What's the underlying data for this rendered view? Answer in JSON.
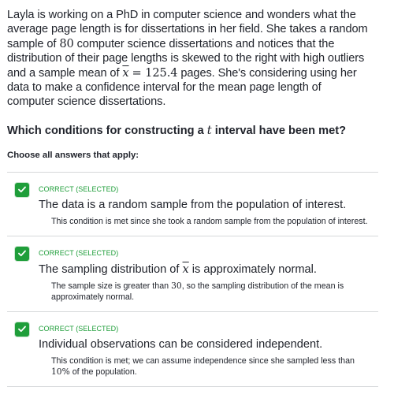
{
  "problem": {
    "part1": "Layla is working on a PhD in computer science and wonders what the average page length is for dissertations in her field. She takes a random sample of ",
    "n": "80",
    "part2": " computer science dissertations and notices that the distribution of their page lengths is skewed to the right with high outliers and a sample mean of ",
    "xbar_symbol": "x",
    "equals": "= 125.4",
    "part3": " pages. She's considering using her data to make a confidence interval for the mean page length of computer science dissertations."
  },
  "question": {
    "prefix": "Which conditions for constructing a ",
    "t": "t",
    "suffix": " interval have been met?"
  },
  "instruction": "Choose all answers that apply:",
  "choices": [
    {
      "status": "CORRECT (SELECTED)",
      "title_a": "The data is a random sample from the population of interest.",
      "expl_a": "This condition is met since she took a random sample from the population of interest."
    },
    {
      "status": "CORRECT (SELECTED)",
      "title_a": "The sampling distribution of ",
      "title_sym": "x",
      "title_b": " is approximately normal.",
      "expl_a": "The sample size is greater than ",
      "expl_num": "30",
      "expl_b": ", so the sampling distribution of the mean is approximately normal."
    },
    {
      "status": "CORRECT (SELECTED)",
      "title_a": "Individual observations can be considered independent.",
      "expl_a": "This condition is met; we can assume independence since she sampled less than ",
      "expl_num": "10%",
      "expl_b": " of the population."
    }
  ],
  "colors": {
    "correct": "#1f9e3a",
    "text": "#21242c",
    "divider": "#d6d8da"
  },
  "icons": {
    "check": "checkmark-icon"
  }
}
